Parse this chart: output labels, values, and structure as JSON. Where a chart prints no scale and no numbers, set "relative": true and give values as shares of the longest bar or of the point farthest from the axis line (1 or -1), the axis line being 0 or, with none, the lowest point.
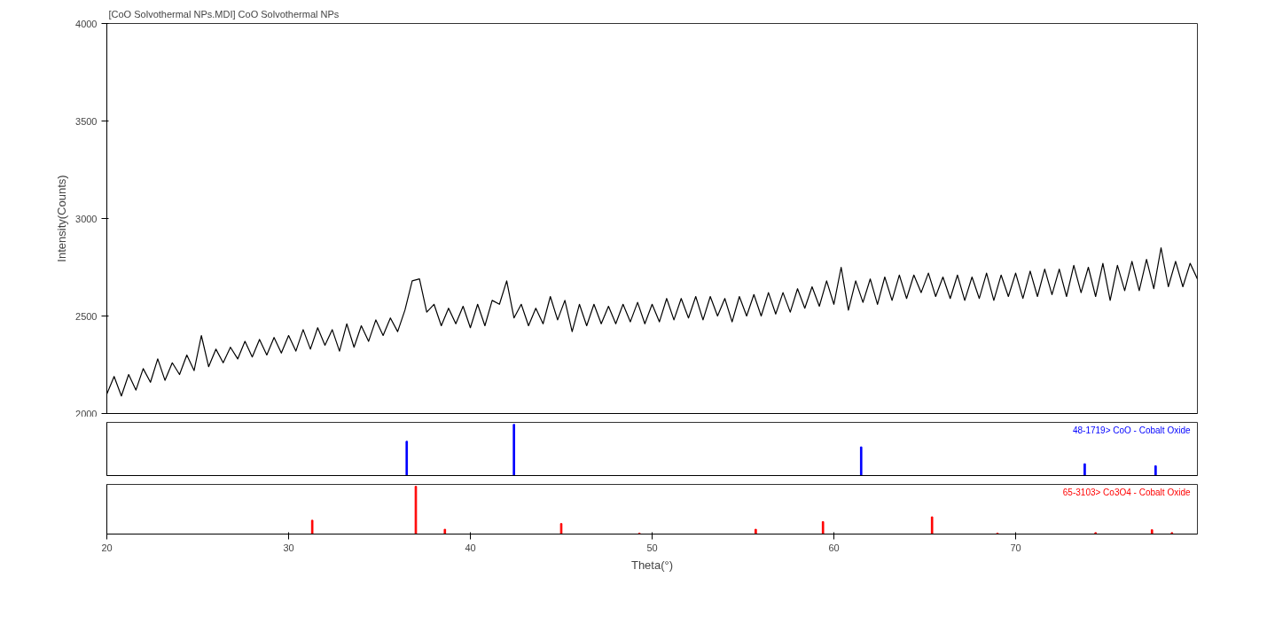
{
  "chart_data": [
    {
      "type": "line",
      "title": "[CoO Solvothermal NPs.MDI] CoO Solvothermal NPs",
      "ylabel": "Intensity(Counts)",
      "xlim": [
        20,
        80
      ],
      "ylim": [
        2000,
        4000
      ],
      "yticks": [
        2000,
        2500,
        3000,
        3500,
        4000
      ],
      "tick_labels": "y",
      "grid": false,
      "x": [
        20,
        20.4,
        20.8,
        21.2,
        21.6,
        22,
        22.4,
        22.8,
        23.2,
        23.6,
        24,
        24.4,
        24.8,
        25.2,
        25.6,
        26,
        26.4,
        26.8,
        27.2,
        27.6,
        28,
        28.4,
        28.8,
        29.2,
        29.6,
        30,
        30.4,
        30.8,
        31.2,
        31.6,
        32,
        32.4,
        32.8,
        33.2,
        33.6,
        34,
        34.4,
        34.8,
        35.2,
        35.6,
        36,
        36.4,
        36.8,
        37.2,
        37.6,
        38,
        38.4,
        38.8,
        39.2,
        39.6,
        40,
        40.4,
        40.8,
        41.2,
        41.6,
        42,
        42.4,
        42.8,
        43.2,
        43.6,
        44,
        44.4,
        44.8,
        45.2,
        45.6,
        46,
        46.4,
        46.8,
        47.2,
        47.6,
        48,
        48.4,
        48.8,
        49.2,
        49.6,
        50,
        50.4,
        50.8,
        51.2,
        51.6,
        52,
        52.4,
        52.8,
        53.2,
        53.6,
        54,
        54.4,
        54.8,
        55.2,
        55.6,
        56,
        56.4,
        56.8,
        57.2,
        57.6,
        58,
        58.4,
        58.8,
        59.2,
        59.6,
        60,
        60.4,
        60.8,
        61.2,
        61.6,
        62,
        62.4,
        62.8,
        63.2,
        63.6,
        64,
        64.4,
        64.8,
        65.2,
        65.6,
        66,
        66.4,
        66.8,
        67.2,
        67.6,
        68,
        68.4,
        68.8,
        69.2,
        69.6,
        70,
        70.4,
        70.8,
        71.2,
        71.6,
        72,
        72.4,
        72.8,
        73.2,
        73.6,
        74,
        74.4,
        74.8,
        75.2,
        75.6,
        76,
        76.4,
        76.8,
        77.2,
        77.6,
        78,
        78.4,
        78.8,
        79.2,
        79.6,
        80
      ],
      "series": [
        {
          "color": "#000000",
          "values": [
            2100,
            2190,
            2090,
            2200,
            2120,
            2230,
            2160,
            2280,
            2170,
            2260,
            2200,
            2300,
            2220,
            2400,
            2240,
            2330,
            2260,
            2340,
            2280,
            2370,
            2290,
            2380,
            2300,
            2390,
            2310,
            2400,
            2320,
            2430,
            2330,
            2440,
            2350,
            2430,
            2320,
            2460,
            2340,
            2450,
            2370,
            2480,
            2400,
            2490,
            2420,
            2530,
            2680,
            2690,
            2520,
            2560,
            2450,
            2540,
            2460,
            2550,
            2440,
            2560,
            2450,
            2580,
            2560,
            2680,
            2490,
            2560,
            2450,
            2540,
            2460,
            2600,
            2480,
            2580,
            2420,
            2560,
            2450,
            2560,
            2460,
            2550,
            2460,
            2560,
            2470,
            2570,
            2460,
            2560,
            2470,
            2590,
            2480,
            2590,
            2490,
            2600,
            2480,
            2600,
            2500,
            2590,
            2470,
            2600,
            2500,
            2610,
            2500,
            2620,
            2510,
            2620,
            2520,
            2640,
            2540,
            2650,
            2550,
            2680,
            2560,
            2750,
            2530,
            2680,
            2570,
            2690,
            2560,
            2700,
            2580,
            2710,
            2590,
            2710,
            2620,
            2720,
            2600,
            2700,
            2590,
            2710,
            2580,
            2700,
            2590,
            2720,
            2580,
            2710,
            2600,
            2720,
            2590,
            2730,
            2600,
            2740,
            2610,
            2740,
            2600,
            2760,
            2620,
            2750,
            2600,
            2770,
            2580,
            2760,
            2630,
            2780,
            2630,
            2790,
            2640,
            2850,
            2650,
            2780,
            2650,
            2770,
            2690
          ]
        }
      ]
    },
    {
      "type": "bar",
      "relative": true,
      "xlim": [
        20,
        80
      ],
      "tick_labels": false,
      "grid": false,
      "x": [
        36.5,
        42.4,
        61.5,
        73.8,
        77.7
      ],
      "series": [
        {
          "name": "48-1719> CoO - Cobalt Oxide",
          "color": "#0000ff",
          "values": [
            0.67,
            1.0,
            0.56,
            0.23,
            0.19
          ]
        }
      ]
    },
    {
      "type": "bar",
      "relative": true,
      "xlabel": "Theta(°)",
      "xlim": [
        20,
        80
      ],
      "xticks": [
        20,
        30,
        40,
        50,
        60,
        70
      ],
      "tick_labels": "x",
      "grid": false,
      "x": [
        31.3,
        37.0,
        38.6,
        45.0,
        49.3,
        55.7,
        59.4,
        65.4,
        69.0,
        74.4,
        77.5,
        78.6
      ],
      "series": [
        {
          "name": "65-3103> Co3O4 - Cobalt Oxide",
          "color": "#ff0000",
          "values": [
            0.29,
            1.0,
            0.1,
            0.22,
            0.02,
            0.1,
            0.26,
            0.36,
            0.02,
            0.03,
            0.09,
            0.03
          ]
        }
      ]
    }
  ]
}
